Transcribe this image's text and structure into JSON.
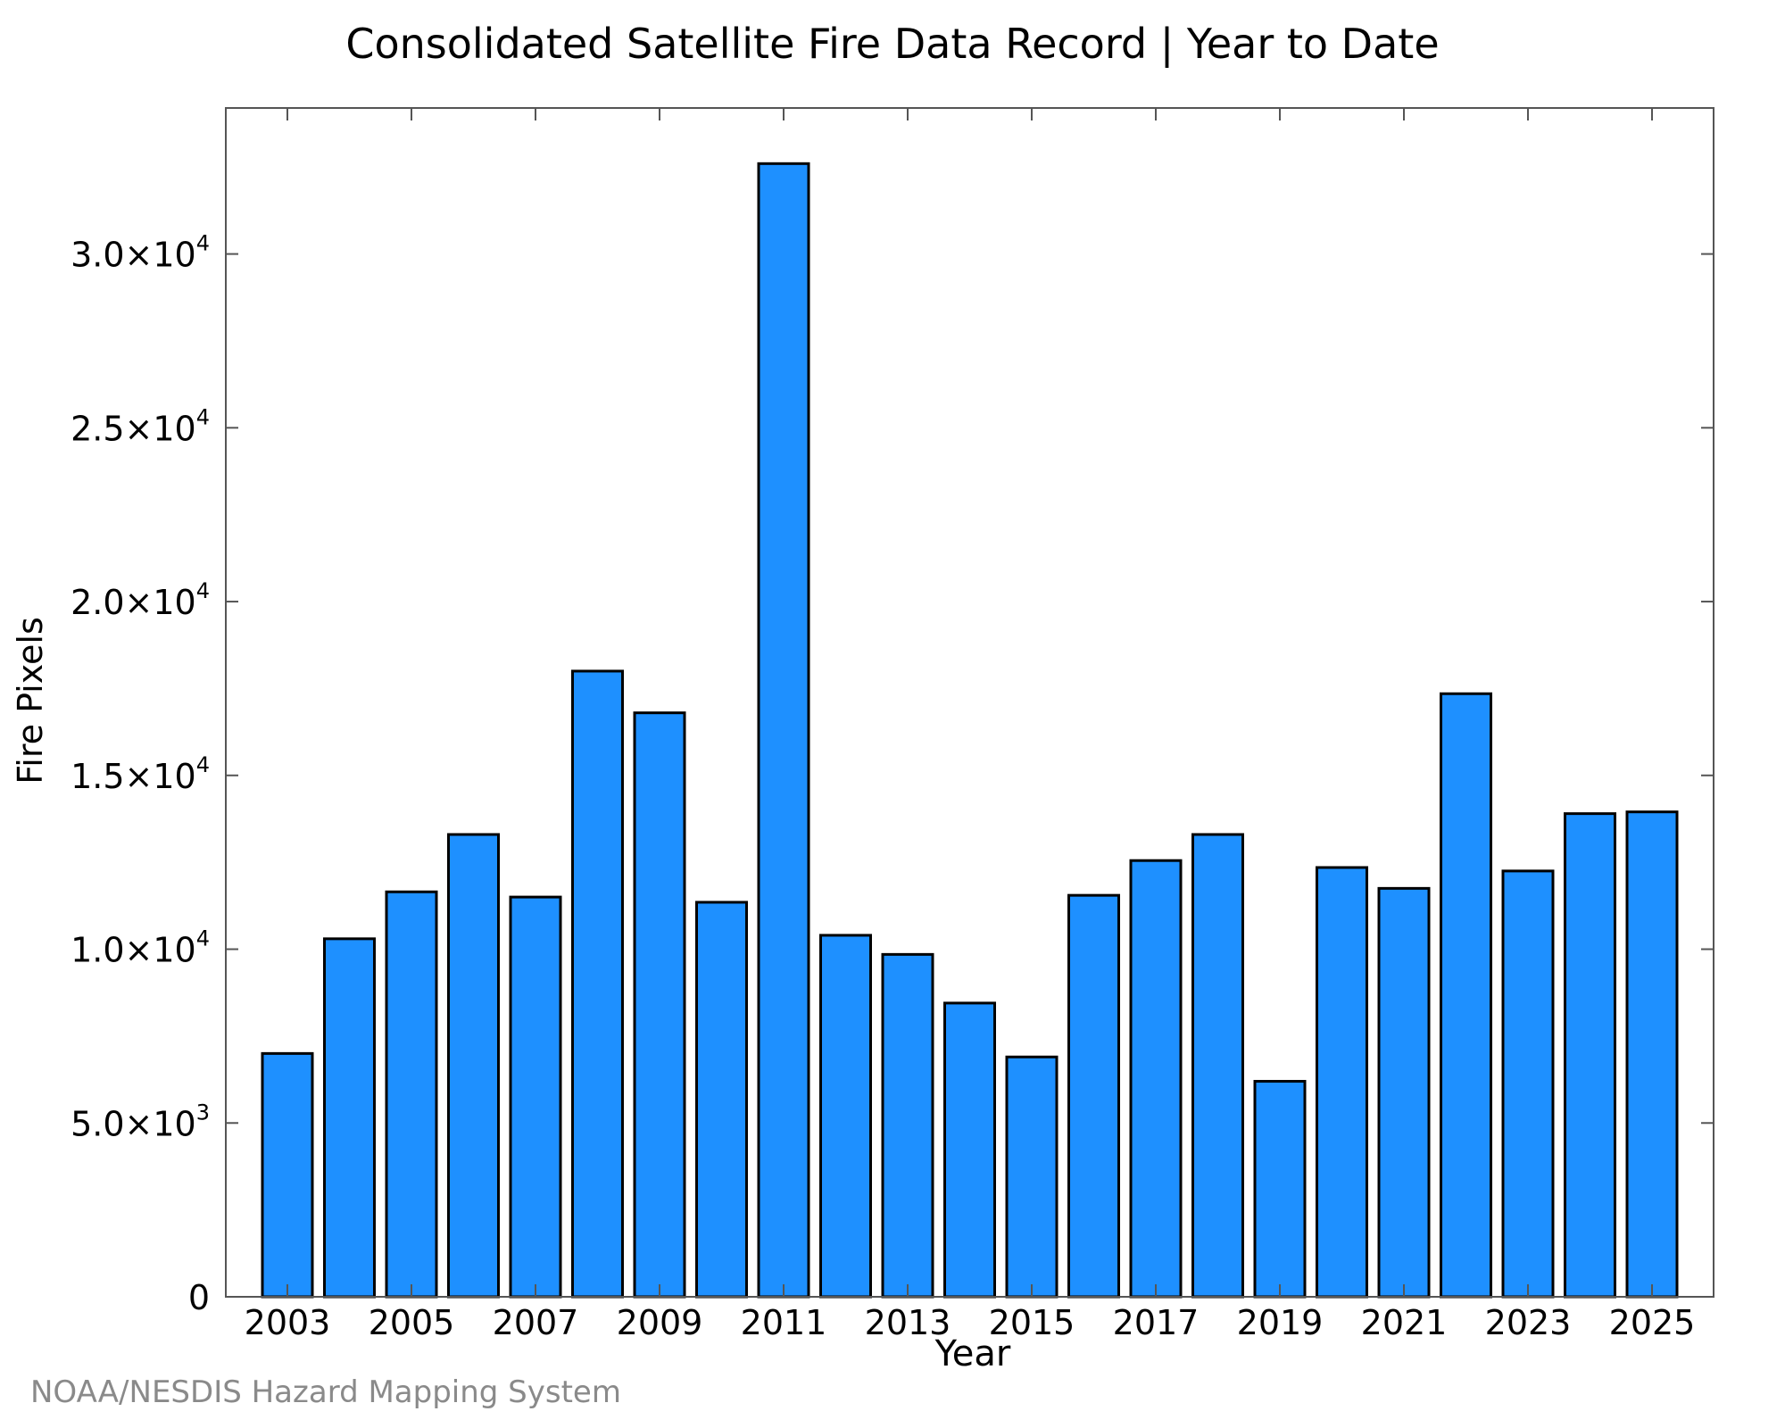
{
  "chart_data": {
    "type": "bar",
    "title": "Consolidated Satellite Fire Data Record | Year to Date",
    "xlabel": "Year",
    "ylabel": "Fire Pixels",
    "categories": [
      "2003",
      "2004",
      "2005",
      "2006",
      "2007",
      "2008",
      "2009",
      "2010",
      "2011",
      "2012",
      "2013",
      "2014",
      "2015",
      "2016",
      "2017",
      "2018",
      "2019",
      "2020",
      "2021",
      "2022",
      "2023",
      "2024",
      "2025"
    ],
    "values": [
      7000,
      10300,
      11650,
      13300,
      11500,
      18000,
      16800,
      11350,
      32600,
      10400,
      9850,
      8450,
      6900,
      11550,
      12550,
      13300,
      6200,
      12350,
      11750,
      17350,
      12250,
      13900,
      13950
    ],
    "xticks": [
      "2003",
      "2005",
      "2007",
      "2009",
      "2011",
      "2013",
      "2015",
      "2017",
      "2019",
      "2021",
      "2023",
      "2025"
    ],
    "yticks": [
      {
        "value": 0,
        "mantissa": "0",
        "exp": ""
      },
      {
        "value": 5000,
        "mantissa": "5.0×10",
        "exp": "3"
      },
      {
        "value": 10000,
        "mantissa": "1.0×10",
        "exp": "4"
      },
      {
        "value": 15000,
        "mantissa": "1.5×10",
        "exp": "4"
      },
      {
        "value": 20000,
        "mantissa": "2.0×10",
        "exp": "4"
      },
      {
        "value": 25000,
        "mantissa": "2.5×10",
        "exp": "4"
      },
      {
        "value": 30000,
        "mantissa": "3.0×10",
        "exp": "4"
      }
    ],
    "ylim": [
      0,
      34200
    ],
    "bar_color": "#1e90ff",
    "bar_edge_color": "#000000",
    "grid": false,
    "legend": "none"
  },
  "credit": "NOAA/NESDIS Hazard Mapping System"
}
